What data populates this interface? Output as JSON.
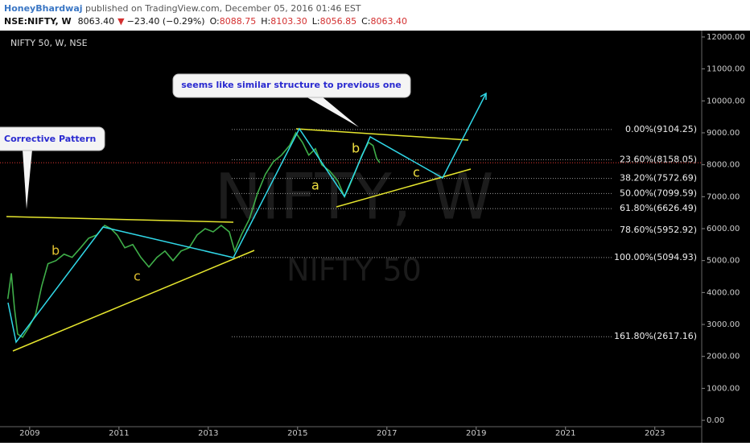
{
  "header": {
    "author": "HoneyBhardwaj",
    "published": "published on TradingView.com, December 05, 2016 01:46 EST",
    "symbol": "NSE:NIFTY, W",
    "change": "−23.40 (−0.29%)",
    "ohlc": [
      {
        "label": "O:",
        "value": "8088.75"
      },
      {
        "label": "H:",
        "value": "8103.30"
      },
      {
        "label": "L:",
        "value": "8056.85"
      },
      {
        "label": "C:",
        "value": "8063.40"
      }
    ]
  },
  "chart_data": {
    "type": "line",
    "title": "NIFTY 50, W, NSE",
    "watermark": "NIFTY, W",
    "watermark_sub": "NIFTY 50",
    "last": {
      "value": 8063.4,
      "label": "8063.40"
    },
    "last_color": "#e53935",
    "xlim": [
      2008.48,
      2024.05
    ],
    "xticks": [
      2009,
      2011,
      2013,
      2015,
      2017,
      2019,
      2021,
      2023
    ],
    "ylim": [
      -200,
      12200
    ],
    "yticks": [
      {
        "value": 0,
        "label": "0.00"
      },
      {
        "value": 1000,
        "label": "1000.00"
      },
      {
        "value": 2000,
        "label": "2000.00"
      },
      {
        "value": 3000,
        "label": "3000.00"
      },
      {
        "value": 4000,
        "label": "4000.00"
      },
      {
        "value": 5000,
        "label": "5000.00"
      },
      {
        "value": 6000,
        "label": "6000.00"
      },
      {
        "value": 7000,
        "label": "7000.00"
      },
      {
        "value": 8000,
        "label": "8000.00"
      },
      {
        "value": 9000,
        "label": "9000.00"
      },
      {
        "value": 10000,
        "label": "10000.00"
      },
      {
        "value": 11000,
        "label": "11000.00"
      },
      {
        "value": 12000,
        "label": "12000.00"
      }
    ],
    "series": [
      {
        "name": "NIFTY",
        "color": "#3fae49",
        "x": [
          2008.51,
          2008.59,
          2008.66,
          2008.73,
          2008.84,
          2008.98,
          2009.13,
          2009.27,
          2009.41,
          2009.59,
          2009.77,
          2009.95,
          2010.14,
          2010.32,
          2010.5,
          2010.68,
          2010.82,
          2010.96,
          2011.13,
          2011.31,
          2011.49,
          2011.67,
          2011.85,
          2012.03,
          2012.21,
          2012.39,
          2012.57,
          2012.75,
          2012.93,
          2013.11,
          2013.29,
          2013.47,
          2013.59,
          2013.74,
          2013.92,
          2014.1,
          2014.28,
          2014.46,
          2014.64,
          2014.82,
          2014.96,
          2015.11,
          2015.25,
          2015.4,
          2015.54,
          2015.72,
          2015.9,
          2016.05,
          2016.15,
          2016.3,
          2016.44,
          2016.59,
          2016.69,
          2016.77,
          2016.84
        ],
        "values": [
          3800,
          4600,
          3500,
          2700,
          2600,
          2900,
          3300,
          4200,
          4900,
          5000,
          5200,
          5100,
          5400,
          5700,
          5800,
          6100,
          6000,
          5800,
          5400,
          5500,
          5100,
          4800,
          5100,
          5300,
          5000,
          5300,
          5400,
          5800,
          6000,
          5900,
          6100,
          5900,
          5300,
          5800,
          6300,
          7100,
          7700,
          8100,
          8300,
          8600,
          9000,
          8700,
          8300,
          8500,
          8000,
          7800,
          7500,
          7000,
          7300,
          7800,
          8300,
          8700,
          8600,
          8200,
          8063
        ]
      }
    ],
    "fib": [
      {
        "value": 9104.25,
        "label": "0.00%(9104.25)"
      },
      {
        "value": 8158.05,
        "label": "23.60%(8158.05)"
      },
      {
        "value": 7572.69,
        "label": "38.20%(7572.69)"
      },
      {
        "value": 7099.59,
        "label": "50.00%(7099.59)"
      },
      {
        "value": 6626.49,
        "label": "61.80%(6626.49)"
      },
      {
        "value": 5952.92,
        "label": "78.60%(5952.92)"
      },
      {
        "value": 5094.93,
        "label": "100.00%(5094.93)"
      },
      {
        "value": 2617.16,
        "label": "161.80%(2617.16)"
      }
    ],
    "annotations": [
      "seems like similar structure to previous one",
      "Corrective Pattern"
    ],
    "wave_labels": [
      "b",
      "c",
      "a",
      "b",
      "c"
    ]
  }
}
